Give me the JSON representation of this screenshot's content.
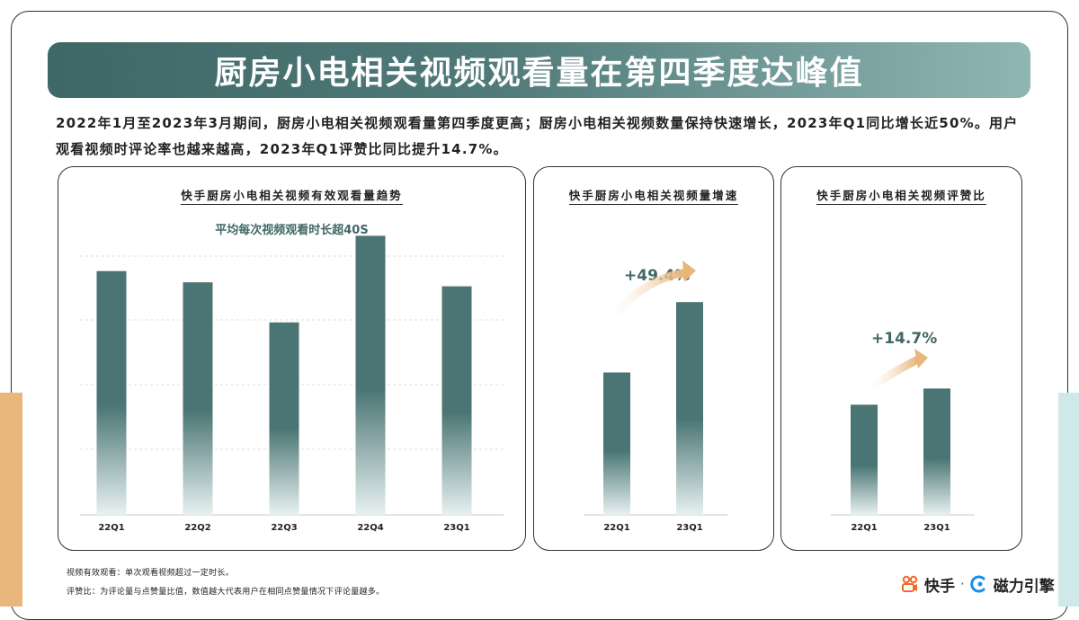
{
  "title": "厨房小电相关视频观看量在第四季度达峰值",
  "summary": "2022年1月至2023年3月期间，厨房小电相关视频观看量第四季度更高；厨房小电相关视频数量保持快速增长，2023年Q1同比增长近50%。用户观看视频时评论率也越来越高，2023年Q1评赞比同比提升14.7%。",
  "colors": {
    "bar": "#4a7574",
    "accent_arrow": "#e8b57a",
    "banner": "#46706f"
  },
  "panels": {
    "views": {
      "title": "快手厨房小电相关视频有效观看量趋势",
      "subtitle": "平均每次视频观看时长超40S"
    },
    "volume": {
      "title": "快手厨房小电相关视频量增速",
      "growth": "+49.4%"
    },
    "ratio": {
      "title": "快手厨房小电相关视频评赞比",
      "growth": "+14.7%"
    }
  },
  "chart_data": [
    {
      "type": "bar",
      "title": "快手厨房小电相关视频有效观看量趋势",
      "categories": [
        "22Q1",
        "22Q2",
        "22Q3",
        "22Q4",
        "23Q1"
      ],
      "values": [
        3.04,
        2.9,
        2.4,
        3.48,
        2.85
      ],
      "ylim": [
        0,
        4.0
      ],
      "grid": true
    },
    {
      "type": "bar",
      "title": "快手厨房小电相关视频量增速",
      "categories": [
        "22Q1",
        "23Q1"
      ],
      "values": [
        1.0,
        1.494
      ],
      "ylim": [
        0,
        2.0
      ],
      "annotation": "+49.4%"
    },
    {
      "type": "bar",
      "title": "快手厨房小电相关视频评赞比",
      "categories": [
        "22Q1",
        "23Q1"
      ],
      "values": [
        1.0,
        1.147
      ],
      "ylim": [
        0,
        2.3
      ],
      "annotation": "+14.7%"
    }
  ],
  "footnotes": {
    "line1": "视频有效观看：单次观看视频超过一定时长。",
    "line2": "评赞比：为评论量与点赞量比值，数值越大代表用户在相同点赞量情况下评论量越多。"
  },
  "brand": {
    "kuaishou": "快手",
    "separator": "·",
    "cili": "磁力引擎",
    "kuaishou_icon": "kuaishou-logo-icon",
    "cili_icon": "cili-logo-icon"
  }
}
